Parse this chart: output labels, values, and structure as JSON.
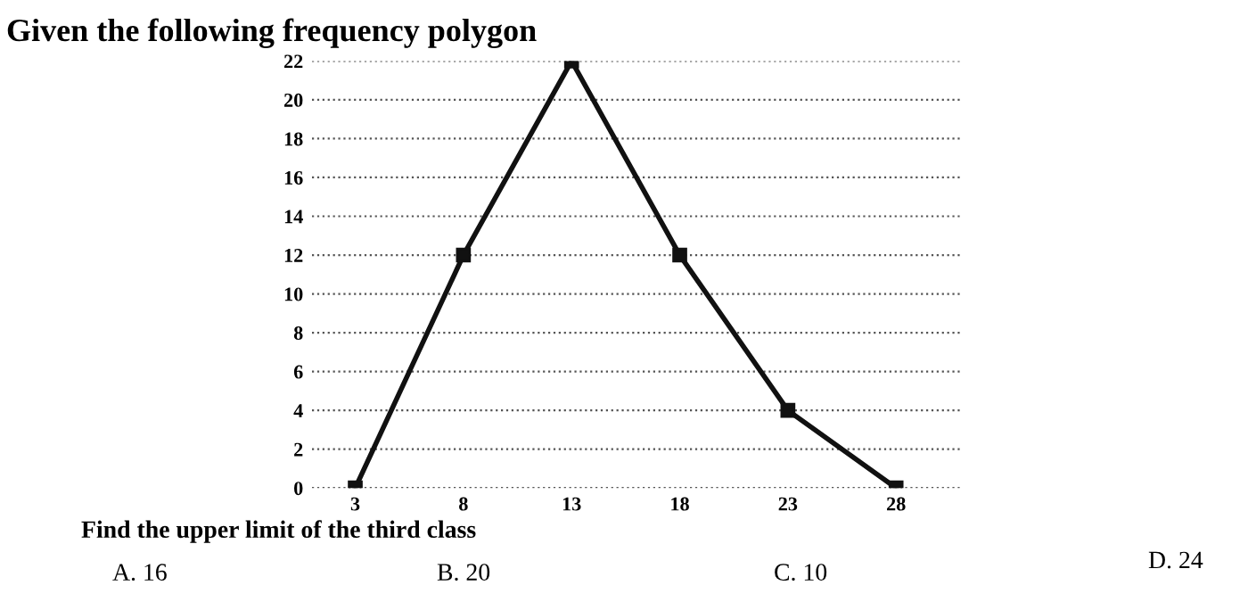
{
  "chart_data": {
    "type": "line",
    "title": "Given the following frequency polygon",
    "categories": [
      "3",
      "8",
      "13",
      "18",
      "23",
      "28"
    ],
    "values": [
      0,
      12,
      22,
      12,
      4,
      0
    ],
    "color": "#111111",
    "marker": "square",
    "line_style": "solid",
    "grid": "y",
    "ylim": [
      0,
      22
    ],
    "yticks": [
      0,
      2,
      4,
      6,
      8,
      10,
      12,
      14,
      16,
      18,
      20,
      22
    ],
    "annotations": [
      "Find the upper limit of the third class",
      "A. 16",
      "B. 20",
      "C. 10",
      "D. 24"
    ]
  }
}
